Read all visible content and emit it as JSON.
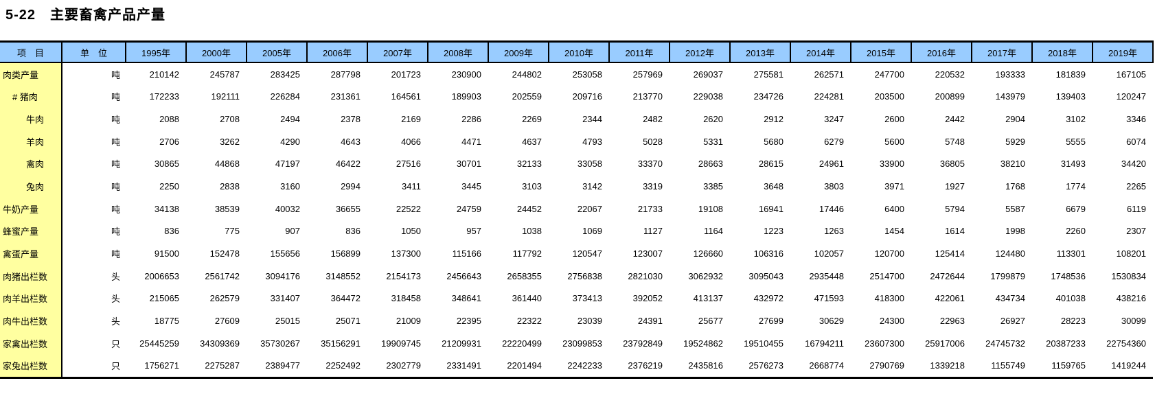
{
  "title": "5-22　主要畜禽产品产量",
  "colors": {
    "header_bg": "#99CCFF",
    "item_column_bg": "#FFFFA0",
    "border": "#000000"
  },
  "table": {
    "header": {
      "item": "项　目",
      "unit": "单　位",
      "years": [
        "1995年",
        "2000年",
        "2005年",
        "2006年",
        "2007年",
        "2008年",
        "2009年",
        "2010年",
        "2011年",
        "2012年",
        "2013年",
        "2014年",
        "2015年",
        "2016年",
        "2017年",
        "2018年",
        "2019年"
      ]
    },
    "rows": [
      {
        "label": "肉类产量",
        "indent": 0,
        "unit": "吨",
        "values": [
          210142,
          245787,
          283425,
          287798,
          201723,
          230900,
          244802,
          253058,
          257969,
          269037,
          275581,
          262571,
          247700,
          220532,
          193333,
          181839,
          167105
        ]
      },
      {
        "label": "# 猪肉",
        "indent": 1,
        "unit": "吨",
        "values": [
          172233,
          192111,
          226284,
          231361,
          164561,
          189903,
          202559,
          209716,
          213770,
          229038,
          234726,
          224281,
          203500,
          200899,
          143979,
          139403,
          120247
        ]
      },
      {
        "label": "牛肉",
        "indent": 2,
        "unit": "吨",
        "values": [
          2088,
          2708,
          2494,
          2378,
          2169,
          2286,
          2269,
          2344,
          2482,
          2620,
          2912,
          3247,
          2600,
          2442,
          2904,
          3102,
          3346
        ]
      },
      {
        "label": "羊肉",
        "indent": 2,
        "unit": "吨",
        "values": [
          2706,
          3262,
          4290,
          4643,
          4066,
          4471,
          4637,
          4793,
          5028,
          5331,
          5680,
          6279,
          5600,
          5748,
          5929,
          5555,
          6074
        ]
      },
      {
        "label": "禽肉",
        "indent": 2,
        "unit": "吨",
        "values": [
          30865,
          44868,
          47197,
          46422,
          27516,
          30701,
          32133,
          33058,
          33370,
          28663,
          28615,
          24961,
          33900,
          36805,
          38210,
          31493,
          34420
        ]
      },
      {
        "label": "兔肉",
        "indent": 2,
        "unit": "吨",
        "values": [
          2250,
          2838,
          3160,
          2994,
          3411,
          3445,
          3103,
          3142,
          3319,
          3385,
          3648,
          3803,
          3971,
          1927,
          1768,
          1774,
          2265
        ]
      },
      {
        "label": "牛奶产量",
        "indent": 0,
        "unit": "吨",
        "values": [
          34138,
          38539,
          40032,
          36655,
          22522,
          24759,
          24452,
          22067,
          21733,
          19108,
          16941,
          17446,
          6400,
          5794,
          5587,
          6679,
          6119
        ]
      },
      {
        "label": "蜂蜜产量",
        "indent": 0,
        "unit": "吨",
        "values": [
          836,
          775,
          907,
          836,
          1050,
          957,
          1038,
          1069,
          1127,
          1164,
          1223,
          1263,
          1454,
          1614,
          1998,
          2260,
          2307
        ]
      },
      {
        "label": "禽蛋产量",
        "indent": 0,
        "unit": "吨",
        "values": [
          91500,
          152478,
          155656,
          156899,
          137300,
          115166,
          117792,
          120547,
          123007,
          126660,
          106316,
          102057,
          120700,
          125414,
          124480,
          113301,
          108201
        ]
      },
      {
        "label": "肉猪出栏数",
        "indent": 0,
        "unit": "头",
        "values": [
          2006653,
          2561742,
          3094176,
          3148552,
          2154173,
          2456643,
          2658355,
          2756838,
          2821030,
          3062932,
          3095043,
          2935448,
          2514700,
          2472644,
          1799879,
          1748536,
          1530834
        ]
      },
      {
        "label": "肉羊出栏数",
        "indent": 0,
        "unit": "头",
        "values": [
          215065,
          262579,
          331407,
          364472,
          318458,
          348641,
          361440,
          373413,
          392052,
          413137,
          432972,
          471593,
          418300,
          422061,
          434734,
          401038,
          438216
        ]
      },
      {
        "label": "肉牛出栏数",
        "indent": 0,
        "unit": "头",
        "values": [
          18775,
          27609,
          25015,
          25071,
          21009,
          22395,
          22322,
          23039,
          24391,
          25677,
          27699,
          30629,
          24300,
          22963,
          26927,
          28223,
          30099
        ]
      },
      {
        "label": "家禽出栏数",
        "indent": 0,
        "unit": "只",
        "values": [
          25445259,
          34309369,
          35730267,
          35156291,
          19909745,
          21209931,
          22220499,
          23099853,
          23792849,
          19524862,
          19510455,
          16794211,
          23607300,
          25917006,
          24745732,
          20387233,
          22754360
        ]
      },
      {
        "label": "家兔出栏数",
        "indent": 0,
        "unit": "只",
        "values": [
          1756271,
          2275287,
          2389477,
          2252492,
          2302779,
          2331491,
          2201494,
          2242233,
          2376219,
          2435816,
          2576273,
          2668774,
          2790769,
          1339218,
          1155749,
          1159765,
          1419244
        ]
      }
    ]
  }
}
